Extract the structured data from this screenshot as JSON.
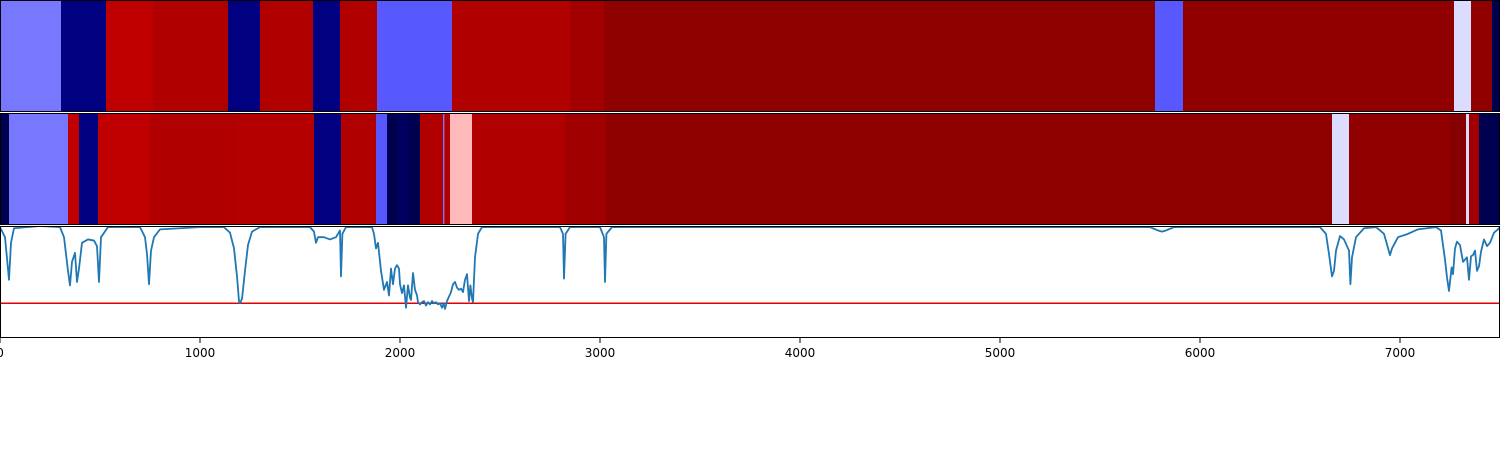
{
  "chart_data": {
    "type": "heatmap",
    "x_range": [
      0,
      7500
    ],
    "x_ticks": [
      0,
      1000,
      2000,
      3000,
      4000,
      5000,
      6000,
      7000
    ],
    "x_tick_labels": [
      "0",
      "1000",
      "2000",
      "3000",
      "4000",
      "5000",
      "6000",
      "7000"
    ],
    "tracks": [
      {
        "segments": [
          {
            "start": 0,
            "end": 305,
            "color": "#7878ff"
          },
          {
            "start": 305,
            "end": 530,
            "color": "#000080"
          },
          {
            "start": 530,
            "end": 765,
            "color": "#c00000"
          },
          {
            "start": 765,
            "end": 1140,
            "color": "#b00000"
          },
          {
            "start": 1140,
            "end": 1300,
            "color": "#000080"
          },
          {
            "start": 1300,
            "end": 1565,
            "color": "#b00000"
          },
          {
            "start": 1565,
            "end": 1700,
            "color": "#000080"
          },
          {
            "start": 1700,
            "end": 1885,
            "color": "#b00000"
          },
          {
            "start": 1885,
            "end": 2260,
            "color": "#5858ff"
          },
          {
            "start": 2260,
            "end": 2850,
            "color": "#b00000"
          },
          {
            "start": 2850,
            "end": 3020,
            "color": "#a20000"
          },
          {
            "start": 3020,
            "end": 5775,
            "color": "#8f0000"
          },
          {
            "start": 5775,
            "end": 5915,
            "color": "#5858ff"
          },
          {
            "start": 5915,
            "end": 7270,
            "color": "#900000"
          },
          {
            "start": 7270,
            "end": 7355,
            "color": "#dcdcff"
          },
          {
            "start": 7355,
            "end": 7460,
            "color": "#900000"
          },
          {
            "start": 7460,
            "end": 7500,
            "color": "#000050"
          }
        ]
      },
      {
        "segments": [
          {
            "start": 0,
            "end": 45,
            "color": "#000050"
          },
          {
            "start": 45,
            "end": 340,
            "color": "#7878ff"
          },
          {
            "start": 340,
            "end": 395,
            "color": "#c00000"
          },
          {
            "start": 395,
            "end": 490,
            "color": "#000080"
          },
          {
            "start": 490,
            "end": 750,
            "color": "#c00000"
          },
          {
            "start": 750,
            "end": 1180,
            "color": "#b00000"
          },
          {
            "start": 1180,
            "end": 1570,
            "color": "#b50000"
          },
          {
            "start": 1570,
            "end": 1705,
            "color": "#000080"
          },
          {
            "start": 1705,
            "end": 1880,
            "color": "#b00000"
          },
          {
            "start": 1880,
            "end": 1935,
            "color": "#5858ff"
          },
          {
            "start": 1935,
            "end": 1990,
            "color": "#000050"
          },
          {
            "start": 1990,
            "end": 2040,
            "color": "#000060"
          },
          {
            "start": 2040,
            "end": 2100,
            "color": "#000050"
          },
          {
            "start": 2100,
            "end": 2215,
            "color": "#b00000"
          },
          {
            "start": 2215,
            "end": 2222,
            "color": "#7878ff"
          },
          {
            "start": 2222,
            "end": 2250,
            "color": "#b00000"
          },
          {
            "start": 2250,
            "end": 2360,
            "color": "#ffbbbb"
          },
          {
            "start": 2360,
            "end": 2825,
            "color": "#b00000"
          },
          {
            "start": 2825,
            "end": 3030,
            "color": "#a00000"
          },
          {
            "start": 3030,
            "end": 6660,
            "color": "#8f0000"
          },
          {
            "start": 6660,
            "end": 6745,
            "color": "#dcdcff"
          },
          {
            "start": 6745,
            "end": 7250,
            "color": "#900000"
          },
          {
            "start": 7250,
            "end": 7330,
            "color": "#850000"
          },
          {
            "start": 7330,
            "end": 7345,
            "color": "#dcdcff"
          },
          {
            "start": 7345,
            "end": 7395,
            "color": "#a00000"
          },
          {
            "start": 7395,
            "end": 7500,
            "color": "#000050"
          }
        ]
      }
    ],
    "line_panel": {
      "y_range": [
        0,
        1
      ],
      "threshold": 0.31,
      "threshold_color": "#e00000",
      "line_color": "#1f77b4",
      "points": [
        [
          0,
          0.99
        ],
        [
          25,
          0.9
        ],
        [
          45,
          0.52
        ],
        [
          55,
          0.85
        ],
        [
          70,
          0.98
        ],
        [
          200,
          1.0
        ],
        [
          300,
          0.99
        ],
        [
          320,
          0.9
        ],
        [
          340,
          0.6
        ],
        [
          350,
          0.47
        ],
        [
          360,
          0.68
        ],
        [
          375,
          0.76
        ],
        [
          385,
          0.5
        ],
        [
          395,
          0.62
        ],
        [
          410,
          0.85
        ],
        [
          440,
          0.88
        ],
        [
          470,
          0.87
        ],
        [
          485,
          0.82
        ],
        [
          495,
          0.5
        ],
        [
          505,
          0.9
        ],
        [
          540,
          0.99
        ],
        [
          700,
          0.99
        ],
        [
          725,
          0.9
        ],
        [
          735,
          0.75
        ],
        [
          745,
          0.48
        ],
        [
          755,
          0.78
        ],
        [
          770,
          0.9
        ],
        [
          800,
          0.97
        ],
        [
          1000,
          0.99
        ],
        [
          1120,
          0.99
        ],
        [
          1150,
          0.94
        ],
        [
          1170,
          0.8
        ],
        [
          1185,
          0.55
        ],
        [
          1195,
          0.33
        ],
        [
          1200,
          0.31
        ],
        [
          1210,
          0.35
        ],
        [
          1225,
          0.6
        ],
        [
          1240,
          0.83
        ],
        [
          1260,
          0.95
        ],
        [
          1300,
          0.99
        ],
        [
          1550,
          0.99
        ],
        [
          1570,
          0.95
        ],
        [
          1580,
          0.85
        ],
        [
          1590,
          0.9
        ],
        [
          1620,
          0.9
        ],
        [
          1650,
          0.88
        ],
        [
          1680,
          0.9
        ],
        [
          1700,
          0.96
        ],
        [
          1705,
          0.55
        ],
        [
          1712,
          0.93
        ],
        [
          1730,
          0.99
        ],
        [
          1860,
          0.99
        ],
        [
          1870,
          0.93
        ],
        [
          1880,
          0.8
        ],
        [
          1890,
          0.85
        ],
        [
          1905,
          0.6
        ],
        [
          1920,
          0.43
        ],
        [
          1935,
          0.5
        ],
        [
          1945,
          0.38
        ],
        [
          1955,
          0.62
        ],
        [
          1965,
          0.48
        ],
        [
          1975,
          0.62
        ],
        [
          1985,
          0.65
        ],
        [
          1995,
          0.62
        ],
        [
          2000,
          0.48
        ],
        [
          2010,
          0.4
        ],
        [
          2020,
          0.47
        ],
        [
          2030,
          0.27
        ],
        [
          2040,
          0.47
        ],
        [
          2050,
          0.36
        ],
        [
          2055,
          0.34
        ],
        [
          2065,
          0.58
        ],
        [
          2075,
          0.43
        ],
        [
          2085,
          0.38
        ],
        [
          2090,
          0.32
        ],
        [
          2100,
          0.3
        ],
        [
          2110,
          0.32
        ],
        [
          2120,
          0.33
        ],
        [
          2130,
          0.29
        ],
        [
          2140,
          0.32
        ],
        [
          2150,
          0.3
        ],
        [
          2160,
          0.33
        ],
        [
          2170,
          0.31
        ],
        [
          2180,
          0.32
        ],
        [
          2190,
          0.3
        ],
        [
          2200,
          0.31
        ],
        [
          2210,
          0.27
        ],
        [
          2218,
          0.31
        ],
        [
          2225,
          0.26
        ],
        [
          2235,
          0.33
        ],
        [
          2245,
          0.37
        ],
        [
          2255,
          0.41
        ],
        [
          2265,
          0.48
        ],
        [
          2275,
          0.5
        ],
        [
          2285,
          0.45
        ],
        [
          2295,
          0.43
        ],
        [
          2305,
          0.44
        ],
        [
          2315,
          0.41
        ],
        [
          2325,
          0.52
        ],
        [
          2335,
          0.57
        ],
        [
          2345,
          0.33
        ],
        [
          2352,
          0.47
        ],
        [
          2360,
          0.35
        ],
        [
          2365,
          0.32
        ],
        [
          2375,
          0.72
        ],
        [
          2390,
          0.93
        ],
        [
          2410,
          0.99
        ],
        [
          2800,
          0.99
        ],
        [
          2815,
          0.93
        ],
        [
          2820,
          0.53
        ],
        [
          2828,
          0.93
        ],
        [
          2850,
          0.99
        ],
        [
          3000,
          0.99
        ],
        [
          3020,
          0.9
        ],
        [
          3025,
          0.5
        ],
        [
          3032,
          0.93
        ],
        [
          3060,
          0.99
        ],
        [
          4000,
          0.99
        ],
        [
          5000,
          0.99
        ],
        [
          5750,
          0.99
        ],
        [
          5790,
          0.96
        ],
        [
          5810,
          0.95
        ],
        [
          5830,
          0.96
        ],
        [
          5870,
          0.99
        ],
        [
          6400,
          0.99
        ],
        [
          6600,
          0.99
        ],
        [
          6630,
          0.93
        ],
        [
          6645,
          0.75
        ],
        [
          6660,
          0.55
        ],
        [
          6670,
          0.6
        ],
        [
          6680,
          0.78
        ],
        [
          6700,
          0.91
        ],
        [
          6720,
          0.88
        ],
        [
          6745,
          0.78
        ],
        [
          6752,
          0.48
        ],
        [
          6760,
          0.72
        ],
        [
          6780,
          0.9
        ],
        [
          6820,
          0.98
        ],
        [
          6880,
          0.99
        ],
        [
          6920,
          0.93
        ],
        [
          6950,
          0.74
        ],
        [
          6960,
          0.8
        ],
        [
          6990,
          0.9
        ],
        [
          7040,
          0.93
        ],
        [
          7090,
          0.97
        ],
        [
          7180,
          0.99
        ],
        [
          7205,
          0.96
        ],
        [
          7225,
          0.7
        ],
        [
          7235,
          0.54
        ],
        [
          7245,
          0.42
        ],
        [
          7258,
          0.63
        ],
        [
          7265,
          0.57
        ],
        [
          7275,
          0.8
        ],
        [
          7285,
          0.86
        ],
        [
          7300,
          0.83
        ],
        [
          7315,
          0.68
        ],
        [
          7325,
          0.7
        ],
        [
          7335,
          0.72
        ],
        [
          7345,
          0.52
        ],
        [
          7355,
          0.73
        ],
        [
          7365,
          0.74
        ],
        [
          7375,
          0.78
        ],
        [
          7385,
          0.6
        ],
        [
          7395,
          0.64
        ],
        [
          7405,
          0.77
        ],
        [
          7420,
          0.88
        ],
        [
          7435,
          0.82
        ],
        [
          7450,
          0.85
        ],
        [
          7470,
          0.94
        ],
        [
          7490,
          0.97
        ],
        [
          7500,
          0.99
        ]
      ]
    }
  }
}
